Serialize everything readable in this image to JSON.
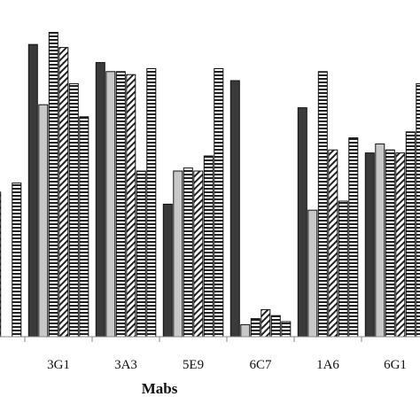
{
  "chart_data": {
    "type": "bar",
    "xlabel": "Mabs",
    "ylabel": "",
    "title": "",
    "ylim": [
      0,
      100
    ],
    "grid": false,
    "legend": "none",
    "categories": [
      "",
      "3G1",
      "3A3",
      "5E9",
      "6C7",
      "1A6",
      "6G1"
    ],
    "visible_categories": [
      false,
      true,
      true,
      true,
      true,
      true,
      true
    ],
    "series": [
      {
        "pattern": "solid-dark",
        "color": "#3a3a3a",
        "values": [
          null,
          97,
          91,
          44,
          85,
          76,
          61
        ]
      },
      {
        "pattern": "solid-light",
        "color": "#c8c8c8",
        "values": [
          null,
          77,
          88,
          55,
          4,
          42,
          64
        ]
      },
      {
        "pattern": "horizontal-stripes",
        "color": "#222222",
        "values": [
          null,
          101,
          88,
          56,
          6,
          88,
          62
        ]
      },
      {
        "pattern": "diagonal-stripes",
        "color": "#222222",
        "values": [
          48,
          96,
          87,
          55,
          9,
          62,
          61
        ]
      },
      {
        "pattern": "horizontal-stripes",
        "color": "#222222",
        "values": [
          null,
          84,
          55,
          60,
          7,
          45,
          68
        ]
      },
      {
        "pattern": "horizontal-stripes",
        "color": "#222222",
        "values": [
          51,
          73,
          89,
          89,
          5,
          66,
          84
        ]
      }
    ]
  }
}
